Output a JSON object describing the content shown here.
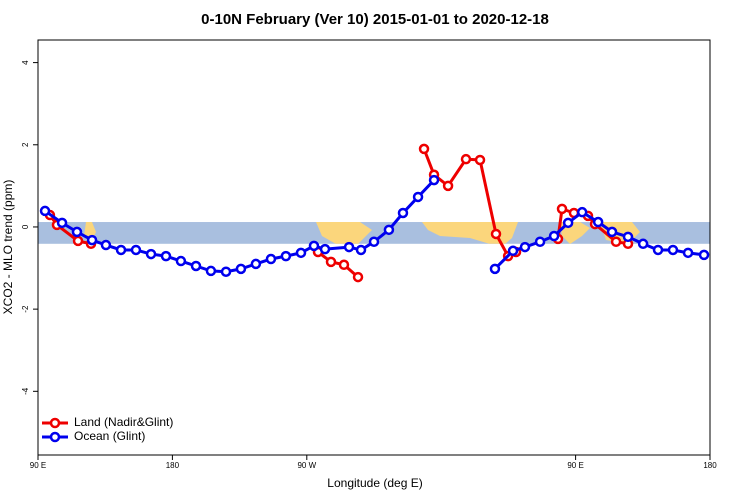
{
  "chart_data": {
    "type": "line",
    "title": "0-10N February (Ver 10)   2015-01-01 to 2020-12-18",
    "xlabel": "Longitude (deg E)",
    "ylabel": "XCO2 - MLO trend (ppm)",
    "xlim": [
      90,
      540
    ],
    "xticks": [
      {
        "value": 90,
        "label": "90 E"
      },
      {
        "value": 180,
        "label": "180"
      },
      {
        "value": 270,
        "label": "90 W"
      },
      {
        "value": 450,
        "label": "90 E"
      },
      {
        "value": 540,
        "label": "180"
      }
    ],
    "ylim": [
      -5.55,
      4.55
    ],
    "yticks": [
      -4,
      -2,
      0,
      2,
      4
    ],
    "band_ylim": [
      -0.41,
      0.12
    ],
    "band_color": "#a9bfdf",
    "land_color": "#fbd67c",
    "legend": "lower left",
    "series": [
      {
        "name": "Land (Nadir&Glint)",
        "color": "#ee0000",
        "x": [
          98.0,
          102.7,
          116.8,
          125.5,
          200,
          277.5,
          286.2,
          294.9,
          304.3,
          330,
          348.5,
          355.2,
          364.6,
          376.6,
          386.0,
          396.7,
          404.8,
          410.1,
          425,
          438.2,
          440.9,
          448.9,
          458.3,
          463.0,
          477.1,
          485.1
        ],
        "values": [
          0.29,
          0.05,
          -0.34,
          -0.41,
          null,
          -0.61,
          -0.85,
          -0.92,
          -1.22,
          null,
          1.9,
          1.27,
          1.0,
          1.65,
          1.63,
          -0.17,
          -0.71,
          -0.61,
          null,
          -0.29,
          0.44,
          0.34,
          0.27,
          0.07,
          -0.36,
          -0.41
        ]
      },
      {
        "name": "Ocean (Glint)",
        "color": "#0000ee",
        "x": [
          94.7,
          106.1,
          116.1,
          126.2,
          135.5,
          145.6,
          155.6,
          165.7,
          175.7,
          185.7,
          195.8,
          205.8,
          215.9,
          225.9,
          235.9,
          246.0,
          256.0,
          266.1,
          274.8,
          282.2,
          298.3,
          306.3,
          315.0,
          325.0,
          334.4,
          344.5,
          355.2,
          375,
          396.0,
          408.1,
          416.1,
          426.2,
          435.6,
          445.0,
          454.4,
          465.1,
          474.4,
          485.1,
          495.2,
          505.2,
          515.2,
          525.3,
          536.0
        ],
        "values": [
          0.39,
          0.1,
          -0.12,
          -0.32,
          -0.44,
          -0.56,
          -0.56,
          -0.66,
          -0.71,
          -0.83,
          -0.95,
          -1.07,
          -1.09,
          -1.02,
          -0.9,
          -0.78,
          -0.71,
          -0.63,
          -0.46,
          -0.54,
          -0.49,
          -0.56,
          -0.36,
          -0.07,
          0.34,
          0.73,
          1.14,
          null,
          -1.02,
          -0.58,
          -0.49,
          -0.36,
          -0.22,
          0.1,
          0.36,
          0.12,
          -0.12,
          -0.24,
          -0.41,
          -0.56,
          -0.56,
          -0.63,
          -0.68
        ]
      }
    ]
  }
}
